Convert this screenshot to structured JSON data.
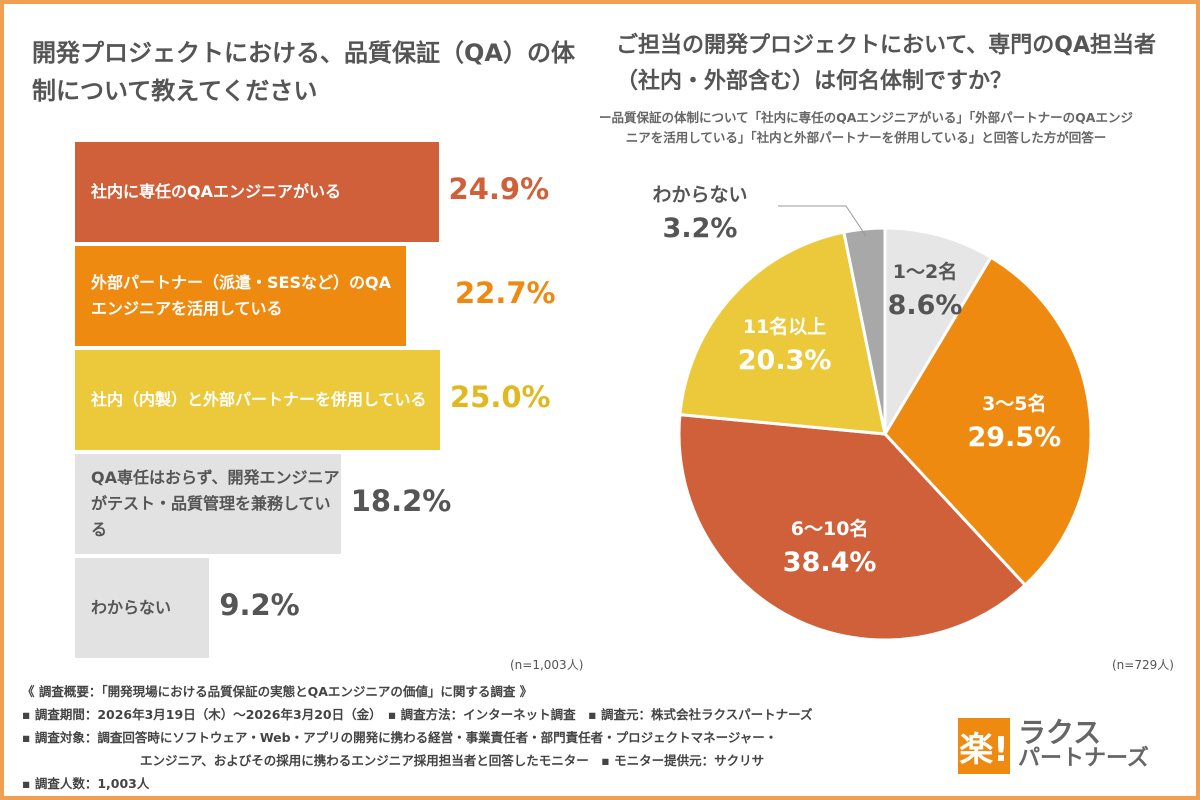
{
  "left_title": "開発プロジェクトにおける、品質保証（QA）の体制について教えてください",
  "right_title": "ご担当の開発プロジェクトにおいて、専門のQA担当者（社内・外部含む）は何名体制ですか？",
  "right_subtitle": "ー品質保証の体制について「社内に専任のQAエンジニアがいる」「外部パートナーのQAエンジニアを活用している」「社内と外部パートナーを併用している」と回答した方が回答ー",
  "chart_data": [
    {
      "type": "bar",
      "orientation": "horizontal",
      "title": "開発プロジェクトにおける、品質保証（QA）の体制について教えてください",
      "unit": "%",
      "n": "(n=1,003人)",
      "categories": [
        "社内に専任のQAエンジニアがいる",
        "外部パートナー（派遣・SESなど）のQAエンジニアを活用している",
        "社内（内製）と外部パートナーを併用している",
        "QA専任はおらず、開発エンジニアがテスト・品質管理を兼務している",
        "わからない"
      ],
      "values": [
        24.9,
        22.7,
        25.0,
        18.2,
        9.2
      ],
      "labels": [
        "24.9%",
        "22.7%",
        "25.0%",
        "18.2%",
        "9.2%"
      ],
      "colors": [
        "#d0603a",
        "#ee8a10",
        "#ecc93a",
        "#e2e2e2",
        "#e2e2e2"
      ]
    },
    {
      "type": "pie",
      "title": "ご担当の開発プロジェクトにおいて、専門のQA担当者（社内・外部含む）は何名体制ですか？",
      "n": "(n=729人)",
      "categories": [
        "1〜2名",
        "3〜5名",
        "6〜10名",
        "11名以上",
        "わからない"
      ],
      "values": [
        8.6,
        29.5,
        38.4,
        20.3,
        3.2
      ],
      "labels": [
        "8.6%",
        "29.5%",
        "38.4%",
        "20.3%",
        "3.2%"
      ],
      "colors": [
        "#e6e6e6",
        "#ee8a10",
        "#d0603a",
        "#ecc93a",
        "#a8a8a8"
      ]
    }
  ],
  "footer": {
    "overview": "《 調査概要：「開発現場における品質保証の実態とQAエンジニアの価値」に関する調査 》",
    "line1": "▪ 調査期間：2026年3月19日（木）〜2026年3月20日（金）　▪ 調査方法：インターネット調査　▪ 調査元：株式会社ラクスパートナーズ",
    "line2": "▪ 調査対象：調査回答時にソフトウェア・Web・アプリの開発に携わる経営・事業責任者・部門責任者・プロジェクトマネージャー・",
    "line3": "エンジニア、およびその採用に携わるエンジニア採用担当者と回答したモニター　▪ モニター提供元：サクリサ",
    "line4": "▪ 調査人数：1,003人"
  },
  "logo": {
    "mark": "楽!",
    "line1": "ラクス",
    "line2": "パートナーズ"
  }
}
